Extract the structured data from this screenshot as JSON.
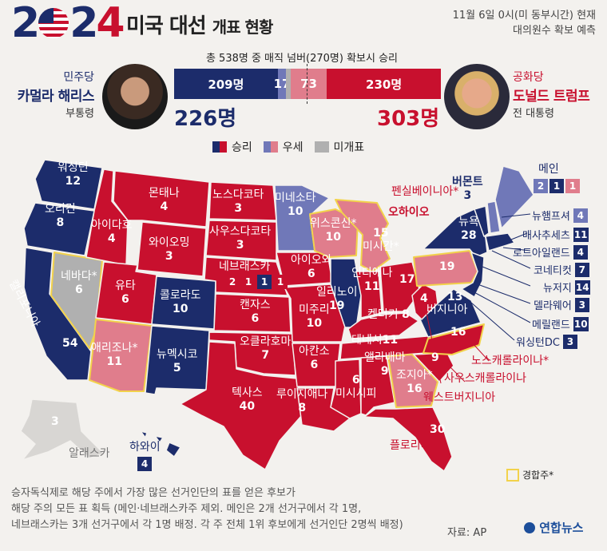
{
  "header": {
    "logo_digits": [
      "2",
      "4"
    ],
    "title_main": "미국 대선",
    "title_sub": "개표 현황",
    "date_line1": "11월 6일 0시(미 동부시간) 현재",
    "date_line2": "대의원수 확보 예측"
  },
  "majority_text": "총 538명 중 매직 넘버(270명) 확보시 승리",
  "colors": {
    "dem_win": "#1c2c6b",
    "dem_lean": "#7078b8",
    "rep_lean": "#e07d8c",
    "rep_win": "#c8102e",
    "undecided": "#b0b0b0",
    "swing": "#f2d24b"
  },
  "bar": {
    "dem_win": "209명",
    "dem_lean": "17",
    "undecided": "",
    "rep_lean": "73",
    "rep_win": "230명",
    "dem_win_v": 209,
    "dem_lean_v": 17,
    "undecided_v": 9,
    "rep_lean_v": 73,
    "rep_win_v": 230
  },
  "democrat": {
    "party": "민주당",
    "name": "카멀라 해리스",
    "role": "부통령",
    "total": "226명"
  },
  "republican": {
    "party": "공화당",
    "name": "도널드 트럼프",
    "role": "전 대통령",
    "total": "303명"
  },
  "legend": {
    "win": "승리",
    "lean": "우세",
    "undecided": "미개표",
    "swing": "경합주*"
  },
  "states": [
    {
      "id": "wa",
      "name": "워싱턴",
      "ev": "12"
    },
    {
      "id": "or",
      "name": "오리건",
      "ev": "8"
    },
    {
      "id": "ca",
      "name": "캘리포니아",
      "ev": "54"
    },
    {
      "id": "nv",
      "name": "네바다*",
      "ev": "6"
    },
    {
      "id": "id",
      "name": "아이다호",
      "ev": "4"
    },
    {
      "id": "mt",
      "name": "몬태나",
      "ev": "4"
    },
    {
      "id": "wy",
      "name": "와이오밍",
      "ev": "3"
    },
    {
      "id": "ut",
      "name": "유타",
      "ev": "6"
    },
    {
      "id": "az",
      "name": "애리조나*",
      "ev": "11"
    },
    {
      "id": "co",
      "name": "콜로라도",
      "ev": "10"
    },
    {
      "id": "nm",
      "name": "뉴멕시코",
      "ev": "5"
    },
    {
      "id": "nd",
      "name": "노스다코타",
      "ev": "3"
    },
    {
      "id": "sd",
      "name": "사우스다코타",
      "ev": "3"
    },
    {
      "id": "ne",
      "name": "네브래스카",
      "ev": ""
    },
    {
      "id": "ks",
      "name": "캔자스",
      "ev": "6"
    },
    {
      "id": "ok",
      "name": "오클라호마",
      "ev": "7"
    },
    {
      "id": "tx",
      "name": "텍사스",
      "ev": "40"
    },
    {
      "id": "mn",
      "name": "미네소타",
      "ev": "10"
    },
    {
      "id": "ia",
      "name": "아이오와",
      "ev": "6"
    },
    {
      "id": "mo",
      "name": "미주리",
      "ev": "10"
    },
    {
      "id": "ar",
      "name": "아칸소",
      "ev": "6"
    },
    {
      "id": "la",
      "name": "루이지애나",
      "ev": "8"
    },
    {
      "id": "wi",
      "name": "위스콘신*",
      "ev": "10"
    },
    {
      "id": "il",
      "name": "일리노이",
      "ev": "19"
    },
    {
      "id": "mi",
      "name": "미시간*",
      "ev": "15"
    },
    {
      "id": "in",
      "name": "인디애나",
      "ev": "11"
    },
    {
      "id": "oh",
      "name": "오하이오",
      "ev": "17"
    },
    {
      "id": "ky",
      "name": "켄터키",
      "ev": "8"
    },
    {
      "id": "tn",
      "name": "테네시",
      "ev": "11"
    },
    {
      "id": "ms",
      "name": "미시시피",
      "ev": "6"
    },
    {
      "id": "al",
      "name": "앨라배마",
      "ev": "9"
    },
    {
      "id": "ga",
      "name": "조지아*",
      "ev": "16"
    },
    {
      "id": "fl",
      "name": "플로리다",
      "ev": "30"
    },
    {
      "id": "sc",
      "name": "사우스캐롤라이나",
      "ev": "9"
    },
    {
      "id": "nc",
      "name": "노스캐롤라이나*",
      "ev": "16"
    },
    {
      "id": "va",
      "name": "버지니아",
      "ev": "13"
    },
    {
      "id": "wv",
      "name": "웨스트버지니아",
      "ev": "4"
    },
    {
      "id": "pa",
      "name": "펜실베이니아*",
      "ev": "19"
    },
    {
      "id": "ny",
      "name": "뉴욕",
      "ev": "28"
    },
    {
      "id": "vt",
      "name": "버몬트",
      "ev": "3"
    },
    {
      "id": "me",
      "name": "메인",
      "ev": ""
    },
    {
      "id": "ak",
      "name": "알래스카",
      "ev": "3"
    },
    {
      "id": "hi",
      "name": "하와이",
      "ev": "4"
    }
  ],
  "ne_split": [
    "2",
    "1",
    "1",
    "1"
  ],
  "me_split": [
    "2",
    "1",
    "1"
  ],
  "northeast": [
    {
      "name": "뉴햄프셔",
      "ev": "4",
      "status": "dem_lean"
    },
    {
      "name": "매사추세츠",
      "ev": "11",
      "status": "dem_win"
    },
    {
      "name": "로드아일랜드",
      "ev": "4",
      "status": "dem_win"
    },
    {
      "name": "코네티컷",
      "ev": "7",
      "status": "dem_win"
    },
    {
      "name": "뉴저지",
      "ev": "14",
      "status": "dem_win"
    },
    {
      "name": "델라웨어",
      "ev": "3",
      "status": "dem_win"
    },
    {
      "name": "메릴랜드",
      "ev": "10",
      "status": "dem_win"
    },
    {
      "name": "워싱턴DC",
      "ev": "3",
      "status": "dem_win"
    }
  ],
  "note": {
    "line1": "승자독식제로 해당 주에서 가장 많은 선거인단의 표를 얻은 후보가",
    "line2": "해당 주의 모든 표 획득 (메인·네브래스카주 제외. 메인은 2개 선거구에서 각 1명,",
    "line3": "네브래스카는 3개 선거구에서 각 1명 배정. 각 주 전체 1위 후보에게 선거인단 2명씩 배정)"
  },
  "source": "자료: AP",
  "agency": "연합뉴스"
}
